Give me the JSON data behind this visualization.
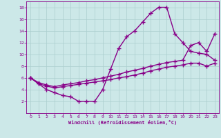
{
  "xlabel": "Windchill (Refroidissement éolien,°C)",
  "background_color": "#cce8e8",
  "line_color": "#880088",
  "xlim": [
    -0.5,
    23.5
  ],
  "ylim": [
    0,
    19
  ],
  "xticks": [
    0,
    1,
    2,
    3,
    4,
    5,
    6,
    7,
    8,
    9,
    10,
    11,
    12,
    13,
    14,
    15,
    16,
    17,
    18,
    19,
    20,
    21,
    22,
    23
  ],
  "yticks": [
    2,
    4,
    6,
    8,
    10,
    12,
    14,
    16,
    18
  ],
  "series1_x": [
    0,
    1,
    2,
    3,
    4,
    5,
    6,
    7,
    8,
    9,
    10,
    11,
    12,
    13,
    14,
    15,
    16,
    17,
    18,
    19,
    20,
    21,
    22,
    23
  ],
  "series1_y": [
    6.0,
    5.0,
    4.0,
    3.5,
    3.0,
    2.8,
    2.0,
    2.0,
    2.0,
    4.0,
    7.5,
    11.0,
    13.0,
    14.0,
    15.5,
    17.0,
    18.0,
    18.0,
    13.5,
    12.0,
    10.5,
    10.2,
    10.0,
    9.0
  ],
  "series2_x": [
    0,
    1,
    2,
    3,
    4,
    5,
    6,
    7,
    8,
    9,
    10,
    11,
    12,
    13,
    14,
    15,
    16,
    17,
    18,
    19,
    20,
    21,
    22,
    23
  ],
  "series2_y": [
    6.0,
    5.2,
    4.8,
    4.5,
    4.8,
    5.0,
    5.2,
    5.5,
    5.7,
    6.0,
    6.3,
    6.6,
    7.0,
    7.3,
    7.6,
    8.0,
    8.3,
    8.6,
    8.8,
    9.0,
    11.5,
    12.0,
    10.5,
    13.5
  ],
  "series3_x": [
    0,
    1,
    2,
    3,
    4,
    5,
    6,
    7,
    8,
    9,
    10,
    11,
    12,
    13,
    14,
    15,
    16,
    17,
    18,
    19,
    20,
    21,
    22,
    23
  ],
  "series3_y": [
    6.0,
    5.0,
    4.6,
    4.3,
    4.5,
    4.7,
    4.9,
    5.1,
    5.3,
    5.5,
    5.7,
    6.0,
    6.2,
    6.5,
    6.8,
    7.2,
    7.5,
    7.8,
    8.0,
    8.2,
    8.5,
    8.5,
    8.0,
    8.5
  ],
  "grid_color": "#aacece",
  "marker": "+",
  "markersize": 4,
  "linewidth": 1.0
}
